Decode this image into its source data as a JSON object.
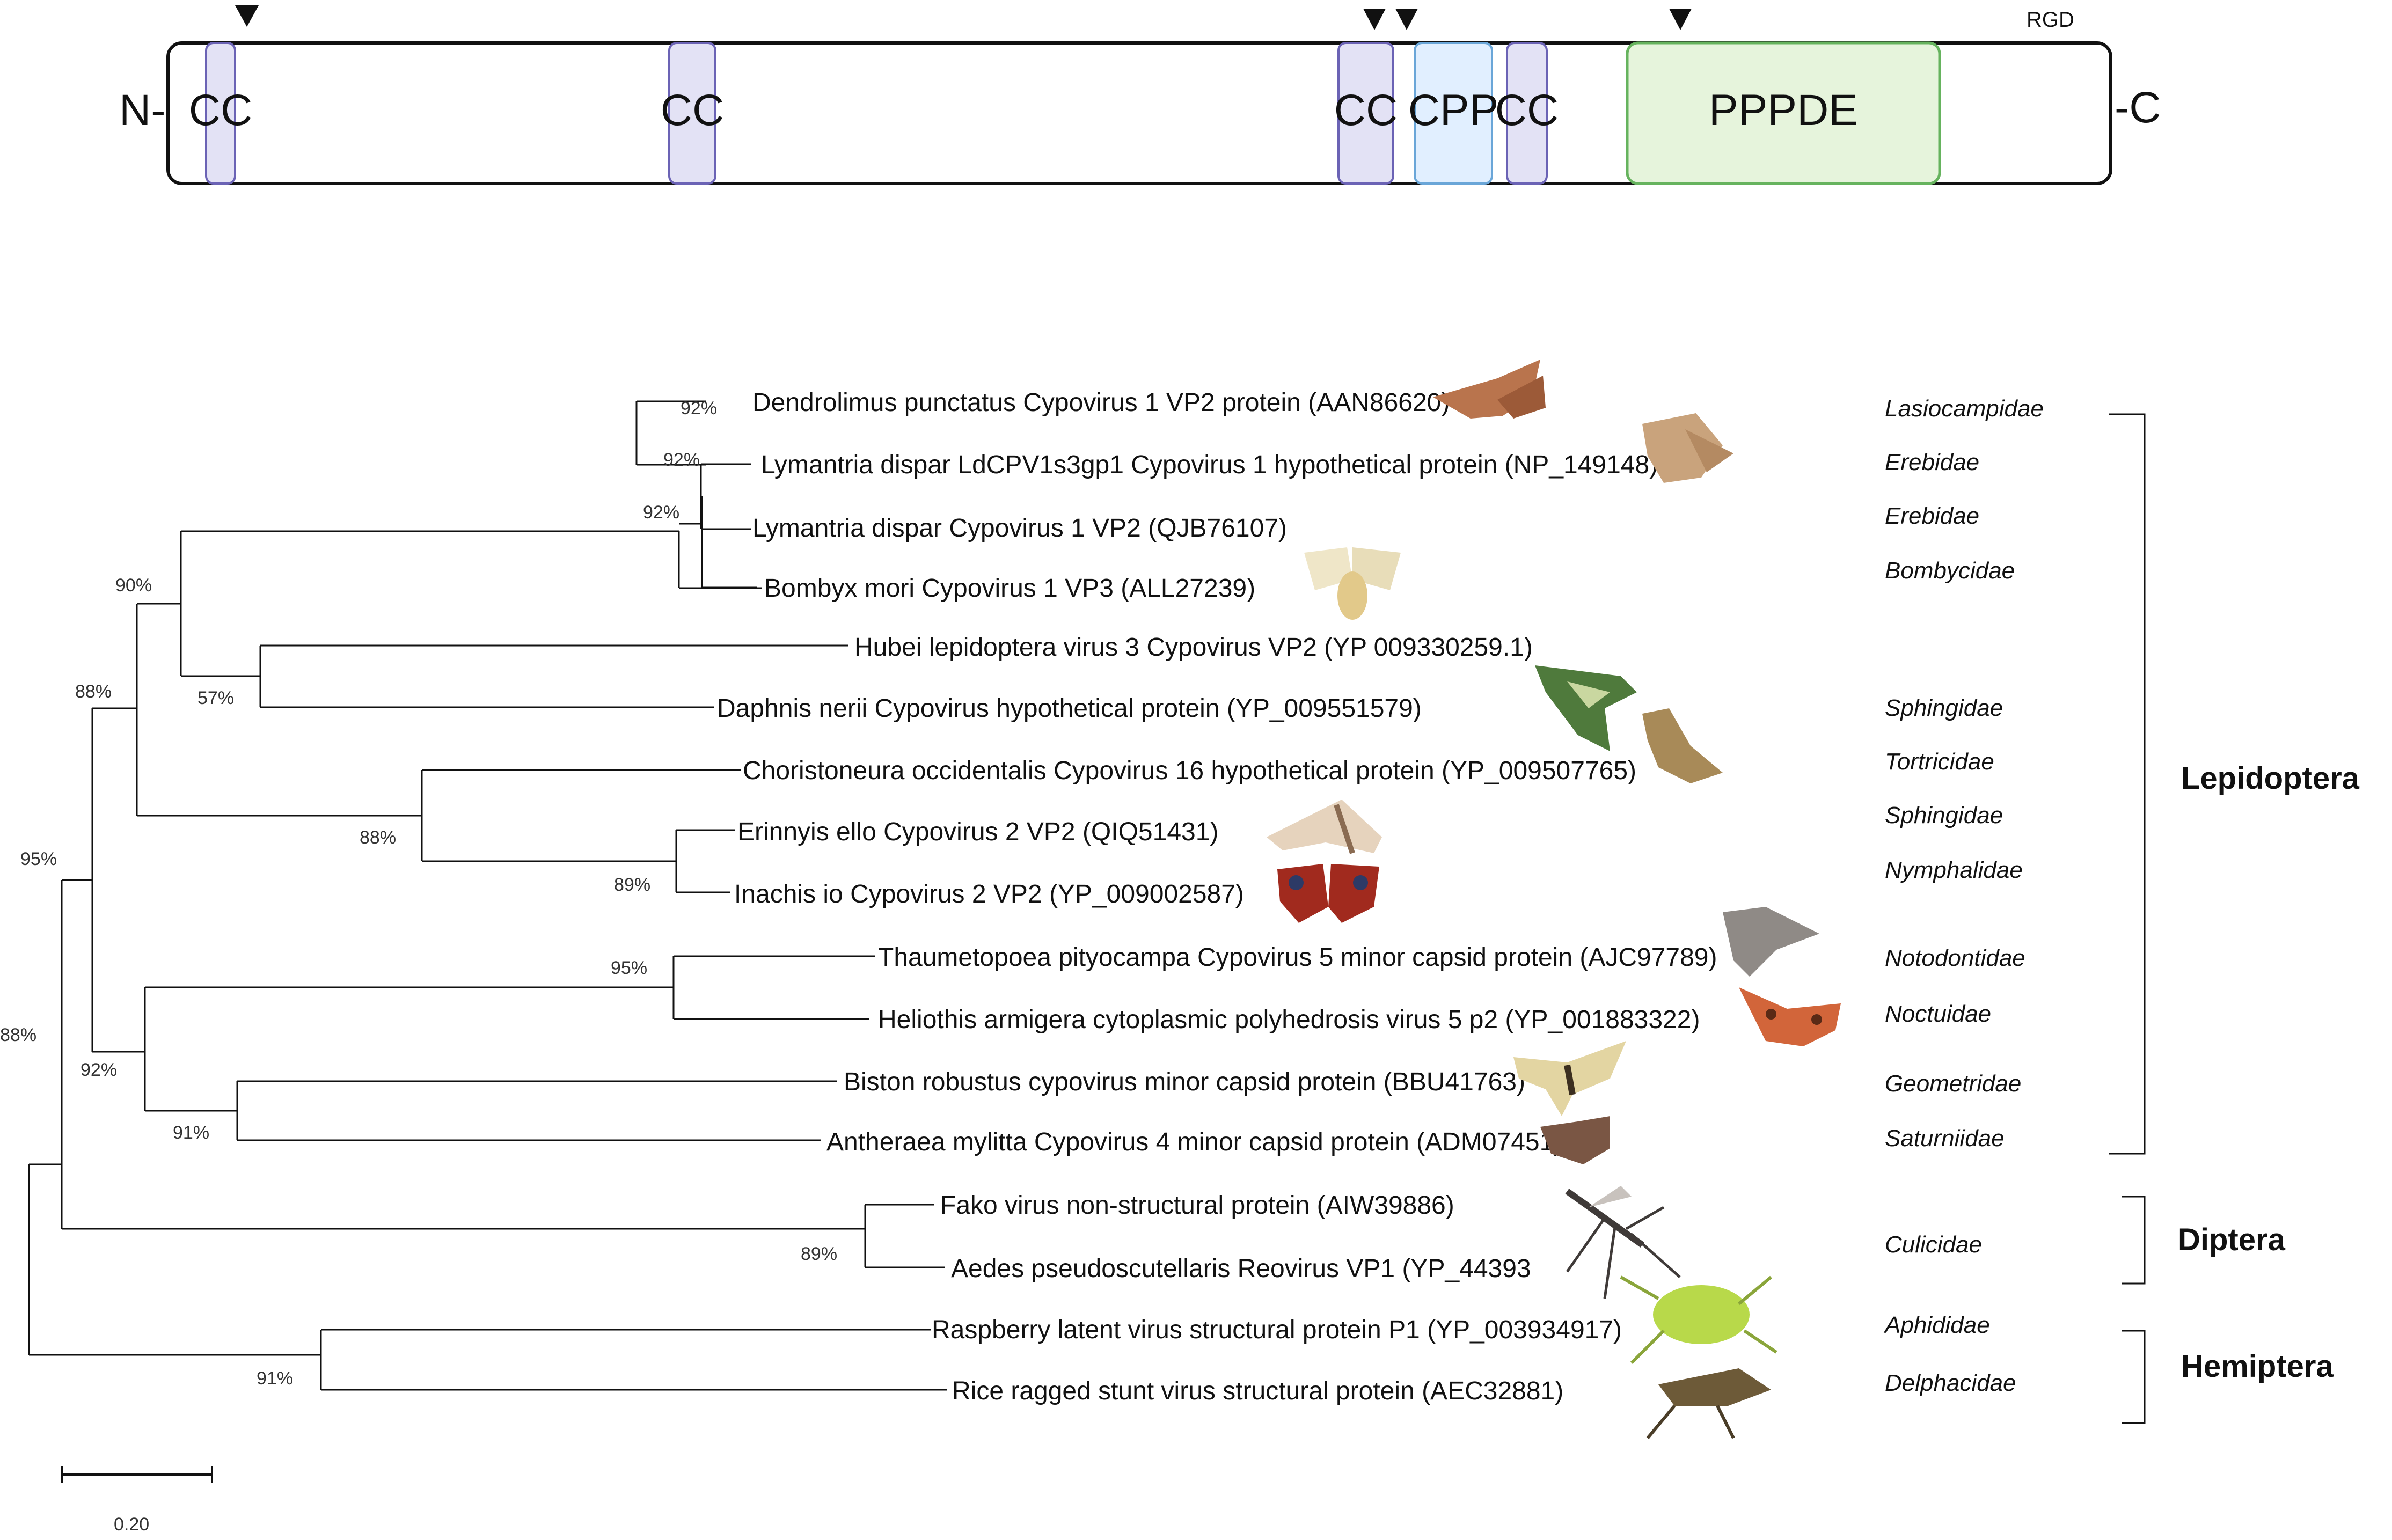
{
  "domain_diagram": {
    "n_terminus": "N-",
    "c_terminus": "-C",
    "motif_label": "RGD",
    "domains": [
      {
        "label": "CC",
        "type": "coiled-coil",
        "color": "#e3e2f5",
        "stroke": "#6b63b5"
      },
      {
        "label": "CC",
        "type": "coiled-coil",
        "color": "#e3e2f5",
        "stroke": "#6b63b5"
      },
      {
        "label": "CC",
        "type": "coiled-coil",
        "color": "#e3e2f5",
        "stroke": "#6b63b5"
      },
      {
        "label": "CPP",
        "type": "cell-penetrating-peptide",
        "color": "#e1efff",
        "stroke": "#6aa6d8"
      },
      {
        "label": "CC",
        "type": "coiled-coil",
        "color": "#e3e2f5",
        "stroke": "#6b63b5"
      },
      {
        "label": "PPPDE",
        "type": "PPPDE",
        "color": "#e6f4dc",
        "stroke": "#66b35e"
      }
    ],
    "marker_icon": "down-triangle-icon",
    "marker_count": 4
  },
  "tree": {
    "taxa": [
      {
        "label": "Dendrolimus punctatus Cypovirus 1 VP2 protein (AAN86620)",
        "family": "Lasiocampidae",
        "image": "moth-icon"
      },
      {
        "label": "Lymantria dispar LdCPV1s3gp1 Cypovirus 1 hypothetical protein (NP_149148)",
        "family": "Erebidae",
        "image": "moth-icon"
      },
      {
        "label": "Lymantria dispar Cypovirus 1 VP2 (QJB76107)",
        "family": "Erebidae"
      },
      {
        "label": "Bombyx mori Cypovirus 1 VP3 (ALL27239)",
        "family": "Bombycidae",
        "image": "silkmoth-icon"
      },
      {
        "label": "Hubei lepidoptera virus 3 Cypovirus VP2 (YP 009330259.1)",
        "family": ""
      },
      {
        "label": "Daphnis nerii Cypovirus hypothetical protein (YP_009551579)",
        "family": "Sphingidae",
        "image": "hawkmoth-icon"
      },
      {
        "label": "Choristoneura occidentalis Cypovirus 16 hypothetical protein (YP_009507765)",
        "family": "Tortricidae",
        "image": "moth-icon"
      },
      {
        "label": "Erinnyis ello Cypovirus 2 VP2 (QIQ51431)",
        "family": "Sphingidae",
        "image": "hawkmoth-icon"
      },
      {
        "label": "Inachis io Cypovirus 2 VP2 (YP_009002587)",
        "family": "Nymphalidae",
        "image": "butterfly-icon"
      },
      {
        "label": "Thaumetopoea pityocampa Cypovirus 5 minor capsid protein (AJC97789)",
        "family": "Notodontidae",
        "image": "moth-icon"
      },
      {
        "label": "Heliothis armigera cytoplasmic polyhedrosis virus 5 p2 (YP_001883322)",
        "family": "Noctuidae",
        "image": "moth-icon"
      },
      {
        "label": "Biston robustus cypovirus minor capsid protein (BBU41763)",
        "family": "Geometridae",
        "image": "moth-icon"
      },
      {
        "label": "Antheraea mylitta Cypovirus 4 minor capsid protein (ADM07451)",
        "family": "Saturniidae",
        "image": "moth-icon"
      },
      {
        "label": "Fako virus non-structural protein (AIW39886)",
        "family": "",
        "image": "mosquito-icon"
      },
      {
        "label": "Aedes pseudoscutellaris Reovirus VP1 (YP_44393",
        "family": "Culicidae"
      },
      {
        "label": "Raspberry latent virus structural protein P1 (YP_003934917)",
        "family": "Aphididae",
        "image": "aphid-icon"
      },
      {
        "label": "Rice ragged stunt virus structural protein (AEC32881)",
        "family": "Delphacidae",
        "image": "planthopper-icon"
      }
    ],
    "bootstrap": [
      "92%",
      "92%",
      "92%",
      "90%",
      "57%",
      "88%",
      "88%",
      "89%",
      "95%",
      "95%",
      "92%",
      "91%",
      "89%",
      "88%",
      "91%"
    ],
    "orders": [
      {
        "label": "Lepidoptera"
      },
      {
        "label": "Diptera"
      },
      {
        "label": "Hemiptera"
      }
    ],
    "scale_bar": {
      "value": "0.20"
    }
  }
}
